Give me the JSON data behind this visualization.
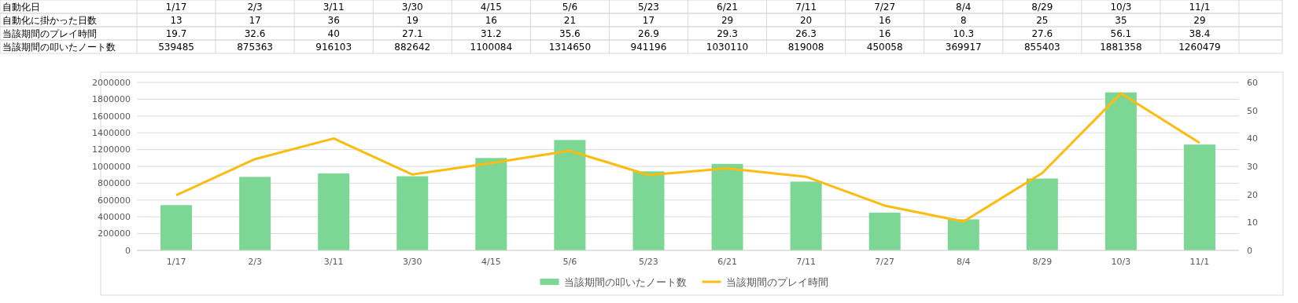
{
  "chart_data": {
    "type": "bar",
    "categories": [
      "1/17",
      "2/3",
      "3/11",
      "3/30",
      "4/15",
      "5/6",
      "5/23",
      "6/21",
      "7/11",
      "7/27",
      "8/4",
      "8/29",
      "10/3",
      "11/1"
    ],
    "series": [
      {
        "name": "当該期間の叩いたノート数",
        "color": "#7dd794",
        "values": [
          539485,
          875363,
          916103,
          882642,
          1100084,
          1314650,
          941196,
          1030110,
          819008,
          450058,
          369917,
          855403,
          1881358,
          1260479
        ],
        "value_labels": [
          "539485",
          "875363",
          "916103",
          "882642",
          "1100084",
          "1314650",
          "941196",
          "1030110",
          "819008",
          "450058",
          "369917",
          "855403",
          "1881358",
          "1260479"
        ]
      },
      {
        "name": "当該期間のプレイ時間",
        "color": "#fcbb0f",
        "type": "line",
        "axis": "y2",
        "values": [
          19.7,
          32.6,
          40,
          27.1,
          31.2,
          35.6,
          26.9,
          29.3,
          26.3,
          16,
          10.3,
          27.6,
          56.1,
          38.4
        ],
        "value_labels": [
          "19.7",
          "32.6",
          "40",
          "27.1",
          "31.2",
          "35.6",
          "26.9",
          "29.3",
          "26.3",
          "16",
          "10.3",
          "27.6",
          "56.1",
          "38.4"
        ]
      }
    ],
    "annotations": [
      "自動化日",
      "自動化に掛かった日数",
      "13",
      "17",
      "36",
      "19",
      "16",
      "21",
      "17",
      "29",
      "20",
      "16",
      "8",
      "25",
      "35",
      "29"
    ],
    "ylim": [
      0,
      2000000
    ],
    "yticks": [
      0,
      200000,
      400000,
      600000,
      800000,
      1000000,
      1200000,
      1400000,
      1600000,
      1800000,
      2000000
    ],
    "y2lim": [
      0,
      60
    ],
    "y2ticks": [
      0,
      10,
      20,
      30,
      40,
      50,
      60
    ],
    "grid": "y",
    "legend": "bottom",
    "line_style": "solid",
    "marker": "none"
  }
}
